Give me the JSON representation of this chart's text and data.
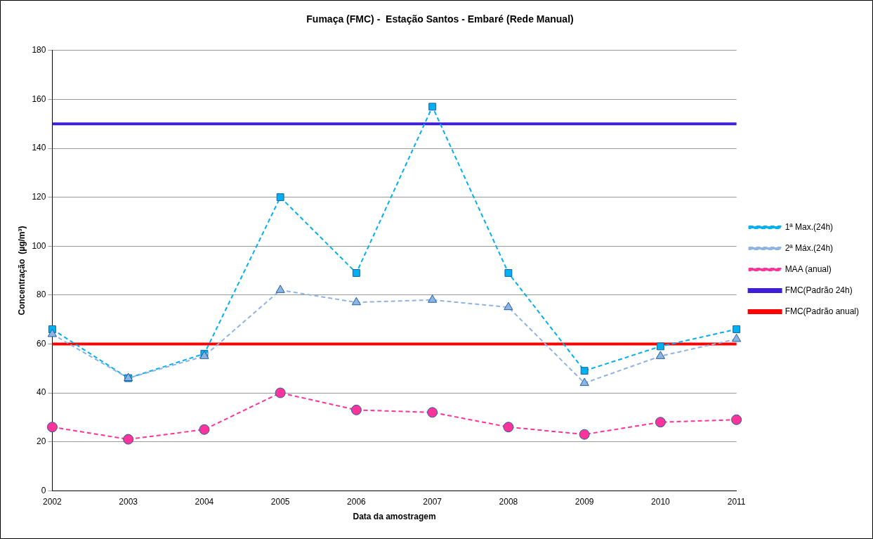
{
  "chart_data": {
    "type": "line",
    "title": "Fumaça (FMC) -  Estação Santos - Embaré (Rede Manual)",
    "xlabel": "Data da amostragem",
    "ylabel": "Concentração  (µg/m³)",
    "categories": [
      "2002",
      "2003",
      "2004",
      "2005",
      "2006",
      "2007",
      "2008",
      "2009",
      "2010",
      "2011"
    ],
    "series": [
      {
        "name": "1ª Max.(24h)",
        "color": "#00b0f0",
        "marker": "square",
        "line_style": "dashed",
        "values": [
          66,
          46,
          56,
          120,
          89,
          157,
          89,
          49,
          59,
          66
        ]
      },
      {
        "name": "2ª Máx.(24h)",
        "color": "#8eb4e3",
        "marker": "triangle",
        "line_style": "dashed",
        "values": [
          64,
          46,
          55,
          82,
          77,
          78,
          75,
          44,
          55,
          62
        ]
      },
      {
        "name": "MAA (anual)",
        "color": "#ff3399",
        "marker": "circle",
        "line_style": "dashed",
        "values": [
          26,
          21,
          25,
          40,
          33,
          32,
          26,
          23,
          28,
          29
        ]
      }
    ],
    "ref_lines": [
      {
        "axis": "y",
        "value": 150,
        "label": "FMC(Padrão 24h)",
        "color": "#3f1fd6"
      },
      {
        "axis": "y",
        "value": 60,
        "label": "FMC(Padrão anual)",
        "color": "#ff0000"
      }
    ],
    "ylim": [
      0,
      180
    ],
    "yticks": [
      0,
      20,
      40,
      60,
      80,
      100,
      120,
      140,
      160,
      180
    ],
    "grid": "y",
    "legend": "right"
  }
}
